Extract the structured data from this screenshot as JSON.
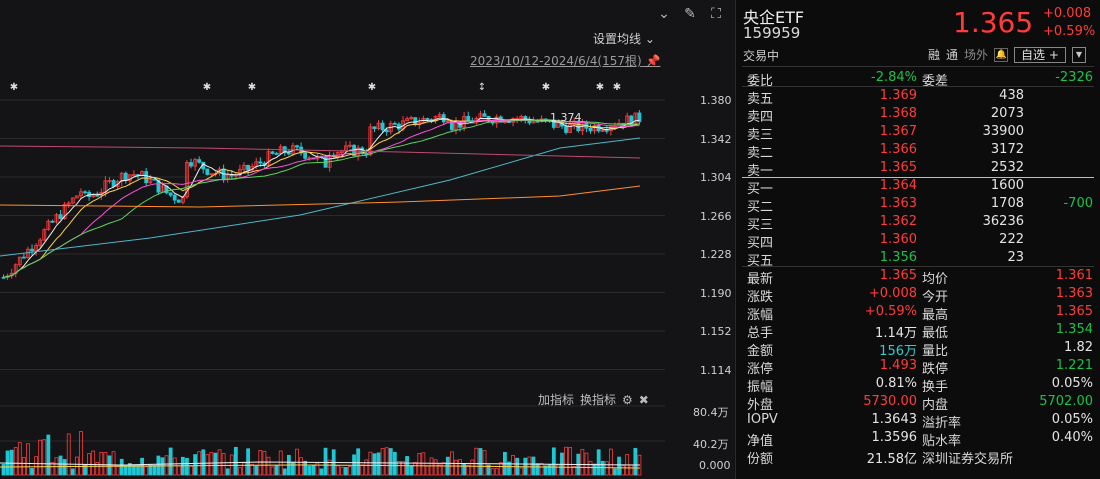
{
  "chart": {
    "ma_setting_label": "设置均线",
    "date_range": "2023/10/12-2024/6/4(157根)",
    "price_axis": [
      "1.380",
      "1.342",
      "1.304",
      "1.266",
      "1.228",
      "1.190",
      "1.152",
      "1.114"
    ],
    "high_annotation": "1.374",
    "indicator_add": "加指标",
    "indicator_swap": "换指标",
    "volume_axis": [
      "80.4万",
      "40.2万",
      "0.000"
    ],
    "colors": {
      "up": "#ff3b3b",
      "down": "#1fc7d4",
      "ma5": "#f0f0f0",
      "ma10": "#ffd24a",
      "ma20": "#ff4fd8",
      "ma30": "#5fd35f",
      "ma60": "#4fb7c8",
      "ma120": "#ff9030",
      "ma250": "#c04a70"
    }
  },
  "quote": {
    "name": "央企ETF",
    "code": "159959",
    "price": "1.365",
    "change": "+0.008",
    "change_pct": "+0.59%",
    "status": "交易中",
    "tags": [
      "融",
      "通",
      "场外"
    ],
    "self_select": "自选 +",
    "weibi_label": "委比",
    "weibi_value": "-2.84%",
    "weicha_label": "委差",
    "weicha_value": "-2326",
    "asks": [
      {
        "label": "卖五",
        "price": "1.369",
        "vol": "438",
        "chg": ""
      },
      {
        "label": "卖四",
        "price": "1.368",
        "vol": "2073",
        "chg": ""
      },
      {
        "label": "卖三",
        "price": "1.367",
        "vol": "33900",
        "chg": ""
      },
      {
        "label": "卖二",
        "price": "1.366",
        "vol": "3172",
        "chg": ""
      },
      {
        "label": "卖一",
        "price": "1.365",
        "vol": "2532",
        "chg": ""
      }
    ],
    "bids": [
      {
        "label": "买一",
        "price": "1.364",
        "vol": "1600",
        "chg": ""
      },
      {
        "label": "买二",
        "price": "1.363",
        "vol": "1708",
        "chg": "-700"
      },
      {
        "label": "买三",
        "price": "1.362",
        "vol": "36236",
        "chg": ""
      },
      {
        "label": "买四",
        "price": "1.360",
        "vol": "222",
        "chg": ""
      },
      {
        "label": "买五",
        "price": "1.356",
        "vol": "23",
        "chg": ""
      }
    ],
    "stats": [
      {
        "l1": "最新",
        "v1": "1.365",
        "c1": "red",
        "l2": "均价",
        "v2": "1.361",
        "c2": "red"
      },
      {
        "l1": "涨跌",
        "v1": "+0.008",
        "c1": "red",
        "l2": "今开",
        "v2": "1.363",
        "c2": "red"
      },
      {
        "l1": "涨幅",
        "v1": "+0.59%",
        "c1": "red",
        "l2": "最高",
        "v2": "1.365",
        "c2": "red"
      },
      {
        "l1": "总手",
        "v1": "1.14万",
        "c1": "white",
        "l2": "最低",
        "v2": "1.354",
        "c2": "green"
      },
      {
        "l1": "金额",
        "v1": "156万",
        "c1": "cyan",
        "l2": "量比",
        "v2": "1.82",
        "c2": "white"
      },
      {
        "l1": "涨停",
        "v1": "1.493",
        "c1": "red",
        "l2": "跌停",
        "v2": "1.221",
        "c2": "green"
      },
      {
        "l1": "振幅",
        "v1": "0.81%",
        "c1": "white",
        "l2": "换手",
        "v2": "0.05%",
        "c2": "white"
      },
      {
        "l1": "外盘",
        "v1": "5730.00",
        "c1": "red",
        "l2": "内盘",
        "v2": "5702.00",
        "c2": "green"
      },
      {
        "l1": "IOPV",
        "v1": "1.3643",
        "c1": "white",
        "l2": "溢折率",
        "v2": "0.05%",
        "c2": "white"
      },
      {
        "l1": "净值",
        "v1": "1.3596",
        "c1": "white",
        "l2": "贴水率",
        "v2": "0.40%",
        "c2": "white"
      },
      {
        "l1": "份额",
        "v1": "21.58亿",
        "c1": "white",
        "l2": "深圳证券交易所",
        "v2": "",
        "c2": "white"
      }
    ]
  }
}
